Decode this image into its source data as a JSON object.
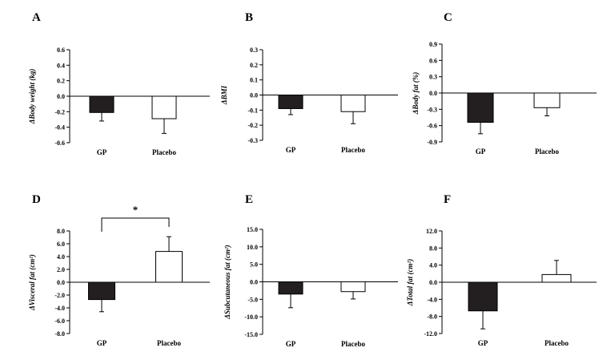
{
  "chart_data": [
    {
      "panel": "A",
      "type": "bar",
      "ylabel": "ΔBody weight (kg)",
      "categories": [
        "GP",
        "Placebo"
      ],
      "values": [
        -0.21,
        -0.29
      ],
      "errors": [
        0.11,
        0.19
      ],
      "ylim": [
        -0.6,
        0.6
      ],
      "ticks": [
        "0.6",
        "0.4",
        "0.2",
        "0.0",
        "-0.2",
        "-0.4",
        "-0.6"
      ],
      "fills": [
        "#231f20",
        "#ffffff"
      ],
      "grid": false
    },
    {
      "panel": "B",
      "type": "bar",
      "ylabel": "ΔBMI",
      "categories": [
        "GP",
        "Placebo"
      ],
      "values": [
        -0.09,
        -0.11
      ],
      "errors": [
        0.04,
        0.08
      ],
      "ylim": [
        -0.3,
        0.3
      ],
      "ticks": [
        "0.3",
        "0.2",
        "0.1",
        "0.0",
        "-0.1",
        "-0.2",
        "-0.3"
      ],
      "fills": [
        "#231f20",
        "#ffffff"
      ],
      "grid": false
    },
    {
      "panel": "C",
      "type": "bar",
      "ylabel": "ΔBody fat (%)",
      "categories": [
        "GP",
        "Placebo"
      ],
      "values": [
        -0.54,
        -0.27
      ],
      "errors": [
        0.21,
        0.15
      ],
      "ylim": [
        -0.9,
        0.9
      ],
      "ticks": [
        "0.9",
        "0.6",
        "0.3",
        "0.0",
        "-0.3",
        "-0.6",
        "-0.9"
      ],
      "fills": [
        "#231f20",
        "#ffffff"
      ],
      "grid": false
    },
    {
      "panel": "D",
      "type": "bar",
      "ylabel": "ΔVisceral fat (cm²)",
      "categories": [
        "GP",
        "Placebo"
      ],
      "values": [
        -2.7,
        4.8
      ],
      "errors": [
        1.9,
        2.3
      ],
      "ylim": [
        -8.0,
        8.0
      ],
      "ticks": [
        "8.0",
        "6.0",
        "4.0",
        "2.0",
        "0.0",
        "-2.0",
        "-4.0",
        "-6.0",
        "-8.0"
      ],
      "fills": [
        "#231f20",
        "#ffffff"
      ],
      "grid": false,
      "significance": "*"
    },
    {
      "panel": "E",
      "type": "bar",
      "ylabel": "ΔSubcutaneous fat (cm²)",
      "categories": [
        "GP",
        "Placebo"
      ],
      "values": [
        -3.5,
        -2.8
      ],
      "errors": [
        3.9,
        2.1
      ],
      "ylim": [
        -15.0,
        15.0
      ],
      "ticks": [
        "15.0",
        "10.0",
        "5.0",
        "0.0",
        "-5.0",
        "-10.0",
        "-15.0"
      ],
      "fills": [
        "#231f20",
        "#ffffff"
      ],
      "grid": false
    },
    {
      "panel": "F",
      "type": "bar",
      "ylabel": "ΔTotal fat (cm²)",
      "categories": [
        "GP",
        "Placebo"
      ],
      "values": [
        -6.7,
        1.8
      ],
      "errors": [
        4.2,
        3.3
      ],
      "ylim": [
        -12.0,
        12.0
      ],
      "ticks": [
        "12.0",
        "8.0",
        "4.0",
        "0.0",
        "-4.0",
        "-8.0",
        "-12.0"
      ],
      "fills": [
        "#231f20",
        "#ffffff"
      ],
      "grid": false
    }
  ]
}
